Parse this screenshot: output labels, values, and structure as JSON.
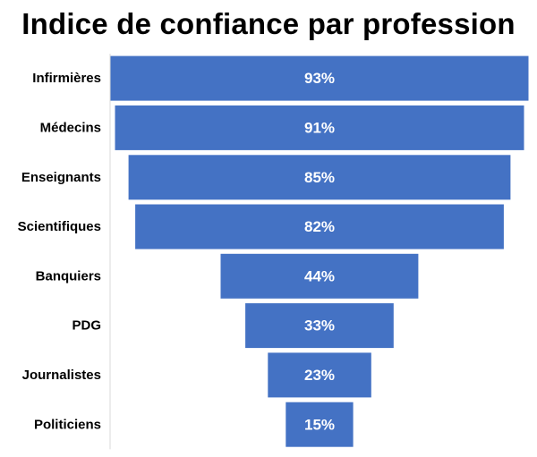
{
  "chart_data": {
    "type": "bar",
    "orientation": "horizontal-funnel",
    "title": "Indice de confiance par profession",
    "categories": [
      "Infirmières",
      "Médecins",
      "Enseignants",
      "Scientifiques",
      "Banquiers",
      "PDG",
      "Journalistes",
      "Politiciens"
    ],
    "values": [
      93,
      91,
      85,
      82,
      44,
      33,
      23,
      15
    ],
    "value_labels": [
      "93%",
      "91%",
      "85%",
      "82%",
      "44%",
      "33%",
      "23%",
      "15%"
    ],
    "unit": "%",
    "xlim": [
      0,
      93
    ],
    "grid": false,
    "legend": "none",
    "bar_color": "#4472C4",
    "label_color": "#ffffff"
  }
}
